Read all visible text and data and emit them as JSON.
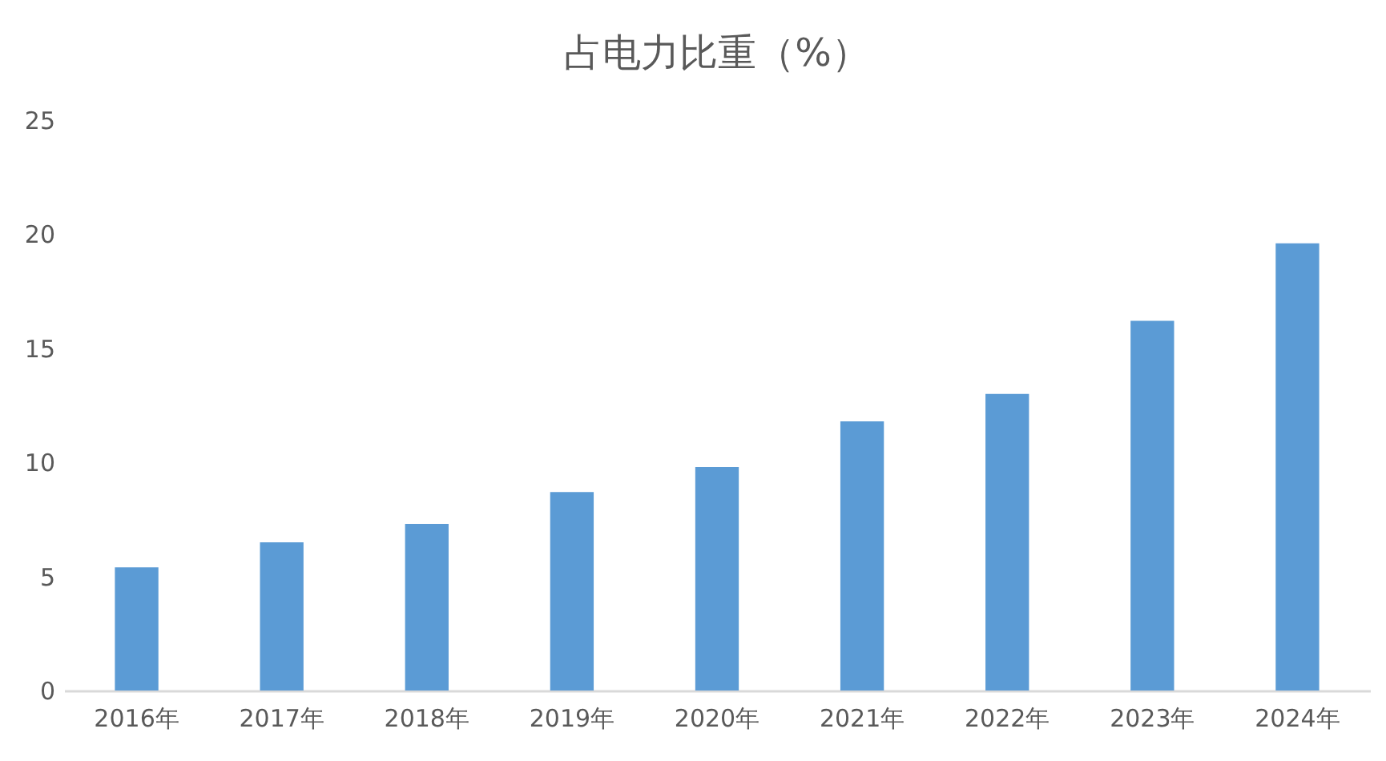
{
  "chart_data": {
    "type": "bar",
    "title": "占电力比重（%）",
    "categories": [
      "2016年",
      "2017年",
      "2018年",
      "2019年",
      "2020年",
      "2021年",
      "2022年",
      "2023年",
      "2024年"
    ],
    "values": [
      5.4,
      6.5,
      7.3,
      8.7,
      9.8,
      11.8,
      13.0,
      16.2,
      19.6
    ],
    "color": "#5b9bd5",
    "ylim": [
      0,
      25
    ],
    "yticks": [
      0,
      5,
      10,
      15,
      20,
      25
    ],
    "grid": false
  }
}
